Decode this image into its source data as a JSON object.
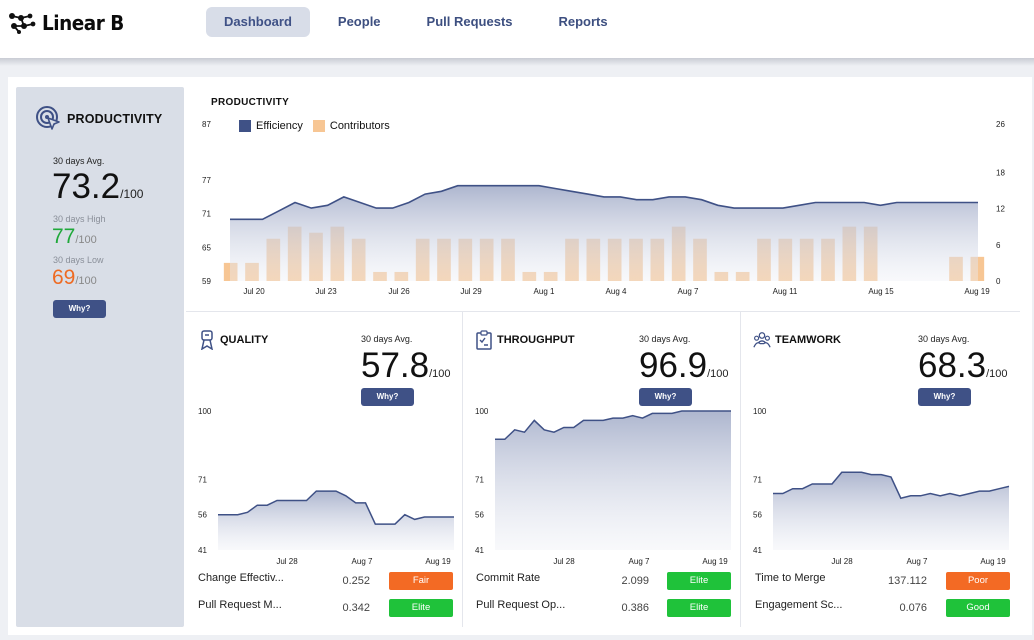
{
  "app": {
    "logo_text": "Linear B"
  },
  "nav": {
    "items": [
      "Dashboard",
      "People",
      "Pull Requests",
      "Reports"
    ],
    "active": "Dashboard"
  },
  "sidebar": {
    "title": "PRODUCTIVITY",
    "avg_label": "30 days Avg.",
    "avg_value": "73.2",
    "unit": "/100",
    "high_label": "30 days High",
    "high_value": "77",
    "low_label": "30 days Low",
    "low_value": "69",
    "why": "Why?",
    "colors": {
      "high": "#1fa83a",
      "low": "#ee6b23"
    }
  },
  "main_chart": {
    "title": "PRODUCTIVITY",
    "legend": [
      "Efficiency",
      "Contributors"
    ],
    "colors": {
      "efficiency": "#3f5186",
      "contributors": "#f7c694"
    }
  },
  "panels": [
    {
      "title": "QUALITY",
      "icon": "ribbon-icon",
      "avg_label": "30 days Avg.",
      "avg_value": "57.8",
      "unit": "/100",
      "why": "Why?",
      "metrics": [
        {
          "name": "Change Effectiv...",
          "value": "0.252",
          "badge": "Fair",
          "badge_color": "#f36a24"
        },
        {
          "name": "Pull Request M...",
          "value": "0.342",
          "badge": "Elite",
          "badge_color": "#1fc23a"
        }
      ]
    },
    {
      "title": "THROUGHPUT",
      "icon": "clipboard-icon",
      "avg_label": "30 days Avg.",
      "avg_value": "96.9",
      "unit": "/100",
      "why": "Why?",
      "metrics": [
        {
          "name": "Commit Rate",
          "value": "2.099",
          "badge": "Elite",
          "badge_color": "#1fc23a"
        },
        {
          "name": "Pull Request Op...",
          "value": "0.386",
          "badge": "Elite",
          "badge_color": "#1fc23a"
        }
      ]
    },
    {
      "title": "TEAMWORK",
      "icon": "team-icon",
      "avg_label": "30 days Avg.",
      "avg_value": "68.3",
      "unit": "/100",
      "why": "Why?",
      "metrics": [
        {
          "name": "Time to Merge",
          "value": "137.112",
          "badge": "Poor",
          "badge_color": "#f36a24"
        },
        {
          "name": "Engagement Sc...",
          "value": "0.076",
          "badge": "Good",
          "badge_color": "#1fc23a"
        }
      ]
    }
  ],
  "chart_data": [
    {
      "type": "area",
      "title": "PRODUCTIVITY",
      "x_ticks": [
        "Jul 20",
        "Jul 23",
        "Jul 26",
        "Jul 29",
        "Aug 1",
        "Aug 4",
        "Aug 7",
        "Aug 11",
        "Aug 15",
        "Aug 19"
      ],
      "y_left_ticks": [
        59,
        65,
        71,
        77,
        87
      ],
      "y_right_ticks": [
        0,
        6,
        12,
        18,
        26
      ],
      "series": [
        {
          "name": "Efficiency",
          "axis": "left",
          "values": [
            70,
            70,
            70,
            71.5,
            73,
            72,
            72.5,
            74,
            73,
            72,
            72,
            73,
            74.5,
            75,
            76,
            76,
            76,
            76,
            76,
            76,
            75.5,
            75,
            74.5,
            74,
            74,
            73.5,
            73.5,
            74,
            74,
            73.5,
            72.5,
            72,
            72,
            72,
            72,
            72.5,
            73,
            73,
            73,
            73,
            72.5,
            73,
            73,
            73,
            73,
            73,
            73
          ]
        },
        {
          "name": "Contributors",
          "type": "bar",
          "axis": "right",
          "values": [
            3,
            3,
            7,
            9,
            8,
            9,
            7,
            1.5,
            1.5,
            7,
            7,
            7,
            7,
            7,
            1.5,
            1.5,
            7,
            7,
            7,
            7,
            7,
            9,
            7,
            1.5,
            1.5,
            7,
            7,
            7,
            7,
            9,
            9,
            0,
            0,
            0,
            4,
            4
          ]
        }
      ]
    },
    {
      "type": "area",
      "title": "QUALITY",
      "x_ticks": [
        "Jul 28",
        "Aug 7",
        "Aug 19"
      ],
      "y_ticks": [
        41,
        56,
        71,
        100
      ],
      "series": [
        {
          "name": "Quality",
          "values": [
            56,
            56,
            56,
            57,
            60,
            60,
            62,
            62,
            62,
            62,
            66,
            66,
            66,
            64,
            61,
            61,
            52,
            52,
            52,
            56,
            54,
            55,
            55,
            55,
            55
          ]
        }
      ]
    },
    {
      "type": "area",
      "title": "THROUGHPUT",
      "x_ticks": [
        "Jul 28",
        "Aug 7",
        "Aug 19"
      ],
      "y_ticks": [
        41,
        56,
        71,
        100
      ],
      "series": [
        {
          "name": "Throughput",
          "values": [
            88,
            88,
            92,
            91,
            96,
            92,
            91,
            93,
            93,
            96,
            96,
            96,
            97,
            97,
            98,
            97,
            99,
            99,
            99,
            100,
            100,
            100,
            100,
            100,
            100
          ]
        }
      ]
    },
    {
      "type": "area",
      "title": "TEAMWORK",
      "x_ticks": [
        "Jul 28",
        "Aug 7",
        "Aug 19"
      ],
      "y_ticks": [
        41,
        56,
        71,
        100
      ],
      "series": [
        {
          "name": "Teamwork",
          "values": [
            65,
            65,
            67,
            67,
            69,
            69,
            69,
            74,
            74,
            74,
            73,
            73,
            72,
            63,
            64,
            64,
            65,
            64,
            65,
            64,
            65,
            66,
            66,
            67,
            68
          ]
        }
      ]
    }
  ]
}
